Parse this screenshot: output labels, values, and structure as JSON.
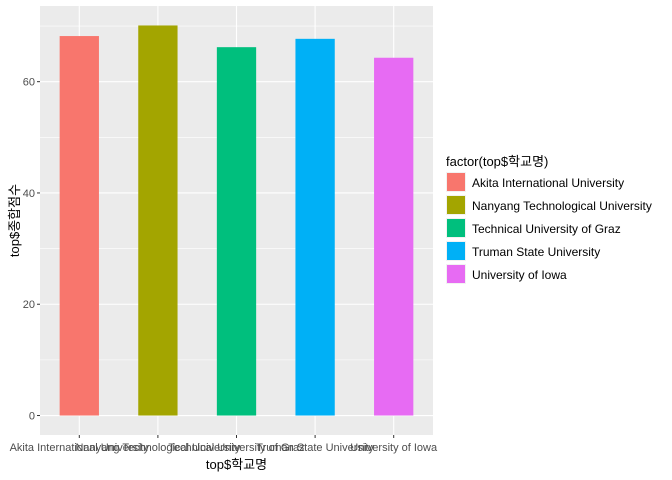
{
  "chart_data": {
    "type": "bar",
    "categories": [
      "Akita International University",
      "Nanyang Technological University",
      "Technical University of Graz",
      "Truman State University",
      "University of Iowa"
    ],
    "values": [
      68.2,
      70.1,
      66.2,
      67.7,
      64.3
    ],
    "colors": [
      "#F8766D",
      "#A3A500",
      "#00BF7D",
      "#00B0F6",
      "#E76BF3"
    ],
    "xlabel": "top$학교명",
    "ylabel": "top$종합점수",
    "ylim": [
      -3.5,
      73.6
    ],
    "yticks": [
      0,
      20,
      40,
      60
    ],
    "legend": {
      "title": "factor(top$학교명)",
      "position": "right"
    },
    "grid": true,
    "panel_background": "#EBEBEB",
    "grid_color": "#FFFFFF"
  }
}
